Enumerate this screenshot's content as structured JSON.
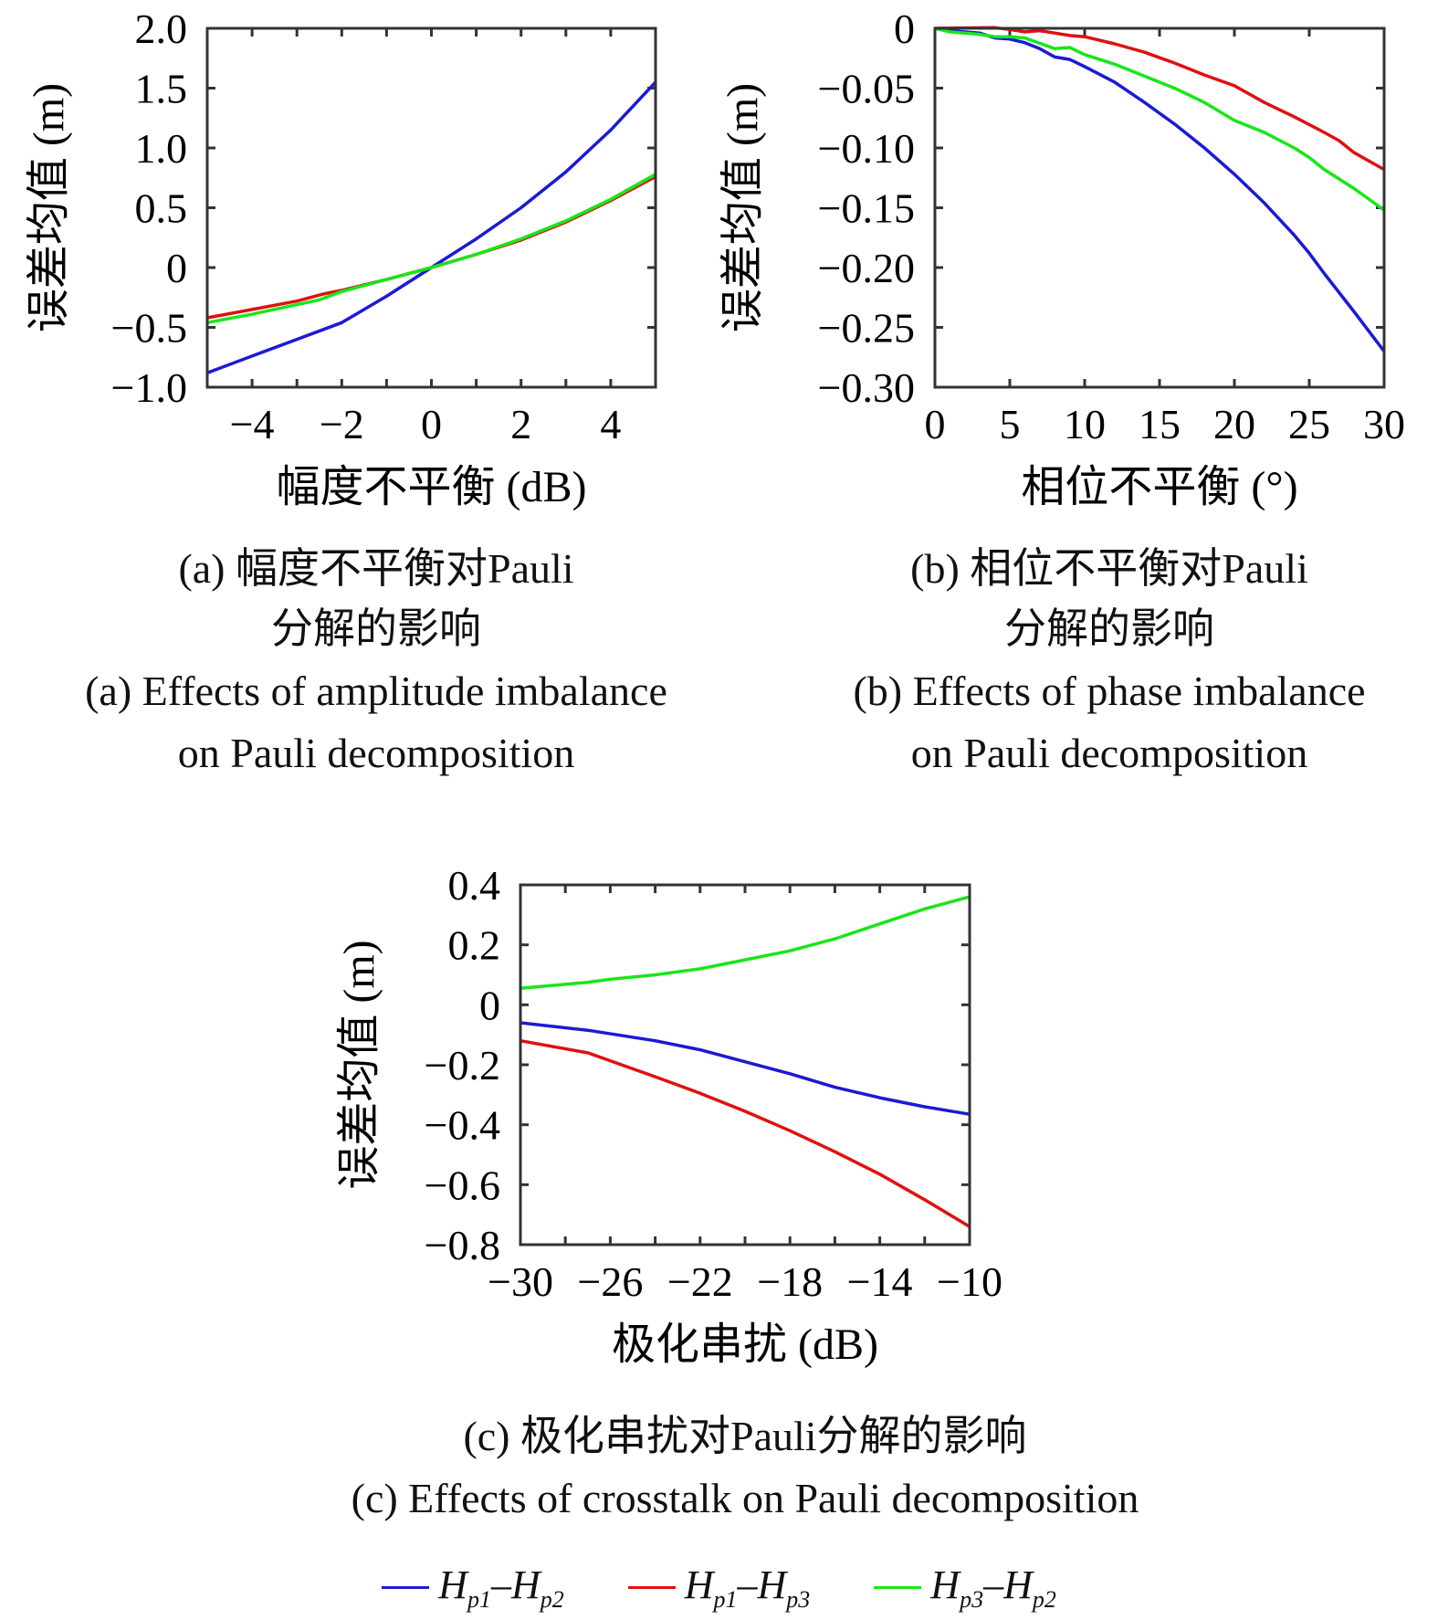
{
  "colors": {
    "blue": "#1a1ad6",
    "red": "#e01010",
    "green": "#19e619",
    "axis": "#333333"
  },
  "captions": {
    "a_cn_1": "(a) 幅度不平衡对Pauli",
    "a_cn_2": "分解的影响",
    "a_en_1": "(a) Effects of amplitude imbalance",
    "a_en_2": "on Pauli decomposition",
    "b_cn_1": "(b) 相位不平衡对Pauli",
    "b_cn_2": "分解的影响",
    "b_en_1": "(b) Effects of phase imbalance",
    "b_en_2": "on Pauli decomposition",
    "c_cn": "(c) 极化串扰对Pauli分解的影响",
    "c_en": "(c) Effects of crosstalk on Pauli decomposition"
  },
  "legend": [
    {
      "a": "H",
      "a_sub": "p1",
      "dash": "–",
      "b": "H",
      "b_sub": "p2",
      "color": "blue"
    },
    {
      "a": "H",
      "a_sub": "p1",
      "dash": "–",
      "b": "H",
      "b_sub": "p3",
      "color": "red"
    },
    {
      "a": "H",
      "a_sub": "p3",
      "dash": "–",
      "b": "H",
      "b_sub": "p2",
      "color": "green"
    }
  ],
  "chart_data": [
    {
      "type": "line",
      "xlabel": "幅度不平衡 (dB)",
      "ylabel": "误差均值 (m)",
      "xlim": [
        -5,
        5
      ],
      "ylim": [
        -1.0,
        2.0
      ],
      "xticks": [
        -4,
        -2,
        0,
        2,
        4
      ],
      "xtick_labels": [
        "−4",
        "−2",
        "0",
        "2",
        "4"
      ],
      "xminor_step": 1,
      "yticks": [
        -1.0,
        -0.5,
        0,
        0.5,
        1.0,
        1.5,
        2.0
      ],
      "ytick_labels": [
        "−1.0",
        "−0.5",
        "0",
        "0.5",
        "1.0",
        "1.5",
        "2.0"
      ],
      "series": [
        {
          "color": "blue",
          "x": [
            -5,
            -4,
            -3,
            -2,
            -1,
            0,
            1,
            2,
            3,
            4,
            5
          ],
          "y": [
            -0.88,
            -0.74,
            -0.6,
            -0.46,
            -0.24,
            0,
            0.24,
            0.5,
            0.8,
            1.15,
            1.55
          ]
        },
        {
          "color": "red",
          "x": [
            -5,
            -4,
            -3,
            -2.4,
            -2,
            -1,
            0,
            1,
            2,
            3,
            4,
            5
          ],
          "y": [
            -0.42,
            -0.35,
            -0.28,
            -0.22,
            -0.19,
            -0.1,
            0,
            0.11,
            0.23,
            0.38,
            0.56,
            0.76
          ]
        },
        {
          "color": "green",
          "x": [
            -5,
            -4,
            -3,
            -2.5,
            -2,
            -1,
            0,
            1,
            2,
            3,
            4,
            5
          ],
          "y": [
            -0.46,
            -0.39,
            -0.31,
            -0.27,
            -0.2,
            -0.1,
            0,
            0.11,
            0.24,
            0.39,
            0.57,
            0.78
          ]
        }
      ]
    },
    {
      "type": "line",
      "xlabel": "相位不平衡 (°)",
      "ylabel": "误差均值 (m)",
      "xlim": [
        0,
        30
      ],
      "ylim": [
        -0.3,
        0
      ],
      "xticks": [
        0,
        5,
        10,
        15,
        20,
        25,
        30
      ],
      "xtick_labels": [
        "0",
        "5",
        "10",
        "15",
        "20",
        "25",
        "30"
      ],
      "xminor_step": 5,
      "yticks": [
        -0.3,
        -0.25,
        -0.2,
        -0.15,
        -0.1,
        -0.05,
        0
      ],
      "ytick_labels": [
        "−0.30",
        "−0.25",
        "−0.20",
        "−0.15",
        "−0.10",
        "−0.05",
        "0"
      ],
      "series": [
        {
          "color": "blue",
          "x": [
            0,
            1,
            3,
            4,
            5,
            6,
            7,
            8,
            9,
            10,
            12,
            14,
            16,
            18,
            20,
            22,
            24,
            25,
            26,
            28,
            30
          ],
          "y": [
            0,
            -0.002,
            -0.004,
            -0.008,
            -0.009,
            -0.012,
            -0.017,
            -0.024,
            -0.026,
            -0.032,
            -0.045,
            -0.062,
            -0.08,
            -0.1,
            -0.122,
            -0.146,
            -0.173,
            -0.188,
            -0.205,
            -0.237,
            -0.27
          ]
        },
        {
          "color": "red",
          "x": [
            0,
            4,
            5,
            6,
            7,
            8,
            9,
            10,
            12,
            14,
            16,
            18,
            20,
            22,
            24,
            26,
            27,
            28,
            30
          ],
          "y": [
            0,
            0.0005,
            -0.001,
            -0.003,
            -0.002,
            -0.004,
            -0.006,
            -0.007,
            -0.013,
            -0.02,
            -0.029,
            -0.039,
            -0.048,
            -0.062,
            -0.074,
            -0.087,
            -0.094,
            -0.104,
            -0.118
          ]
        },
        {
          "color": "green",
          "x": [
            0,
            1,
            3,
            4,
            5,
            6,
            8,
            9,
            10,
            12,
            14,
            16,
            18,
            20,
            22,
            24,
            25,
            26,
            28,
            30
          ],
          "y": [
            0,
            -0.003,
            -0.005,
            -0.007,
            -0.007,
            -0.008,
            -0.017,
            -0.016,
            -0.022,
            -0.03,
            -0.04,
            -0.05,
            -0.062,
            -0.077,
            -0.087,
            -0.1,
            -0.108,
            -0.118,
            -0.134,
            -0.152
          ]
        }
      ]
    },
    {
      "type": "line",
      "xlabel": "极化串扰 (dB)",
      "ylabel": "误差均值 (m)",
      "xlim": [
        -30,
        -10
      ],
      "ylim": [
        -0.8,
        0.4
      ],
      "xticks": [
        -30,
        -26,
        -22,
        -18,
        -14,
        -10
      ],
      "xtick_labels": [
        "−30",
        "−26",
        "−22",
        "−18",
        "−14",
        "−10"
      ],
      "xminor_step": 2,
      "yticks": [
        -0.8,
        -0.6,
        -0.4,
        -0.2,
        0,
        0.2,
        0.4
      ],
      "ytick_labels": [
        "−0.8",
        "−0.6",
        "−0.4",
        "−0.2",
        "0",
        "0.2",
        "0.4"
      ],
      "series": [
        {
          "color": "green",
          "x": [
            -30,
            -27,
            -26,
            -24,
            -22,
            -20,
            -18,
            -16,
            -14,
            -12,
            -10
          ],
          "y": [
            0.055,
            0.075,
            0.085,
            0.1,
            0.12,
            0.15,
            0.18,
            0.22,
            0.27,
            0.32,
            0.36
          ]
        },
        {
          "color": "blue",
          "x": [
            -30,
            -27,
            -24,
            -22,
            -20,
            -18,
            -16,
            -14,
            -12,
            -10
          ],
          "y": [
            -0.06,
            -0.085,
            -0.12,
            -0.15,
            -0.19,
            -0.23,
            -0.275,
            -0.31,
            -0.34,
            -0.365
          ]
        },
        {
          "color": "red",
          "x": [
            -30,
            -27,
            -24,
            -22,
            -20,
            -18,
            -16,
            -14,
            -12,
            -10
          ],
          "y": [
            -0.12,
            -0.16,
            -0.24,
            -0.295,
            -0.355,
            -0.42,
            -0.49,
            -0.565,
            -0.65,
            -0.74
          ]
        }
      ]
    }
  ]
}
